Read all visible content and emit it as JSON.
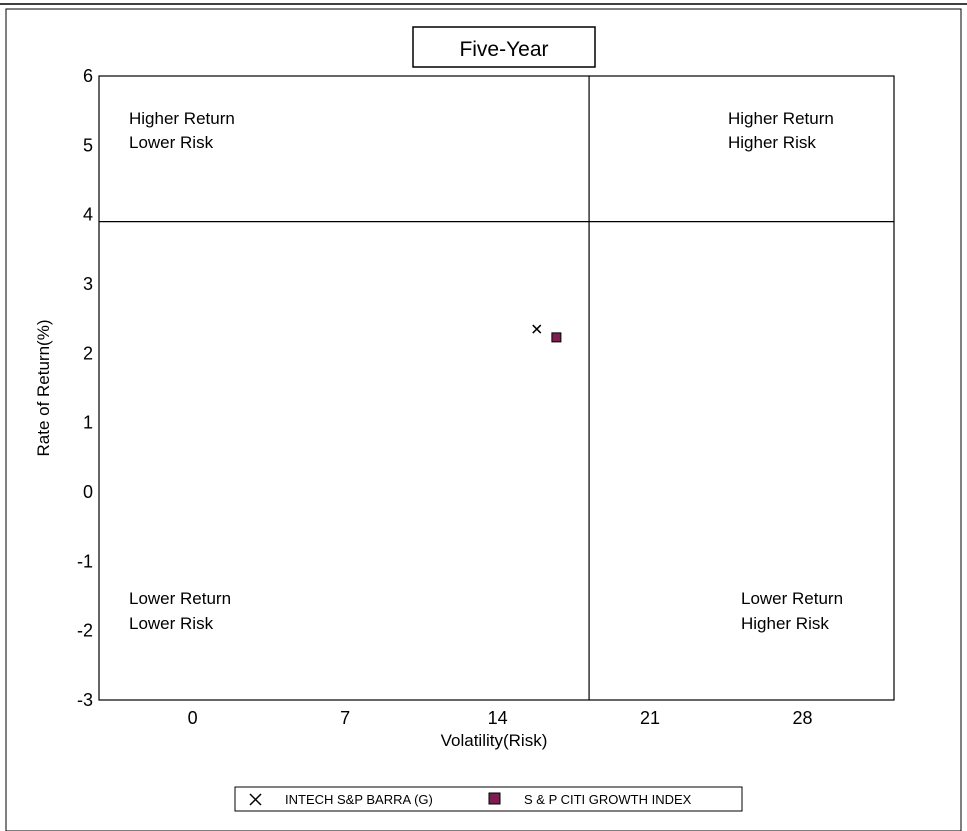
{
  "chart_data": {
    "type": "scatter",
    "title": "Five-Year",
    "xlabel": "Volatility(Risk)",
    "ylabel": "Rate of Return(%)",
    "xlim": [
      -4.3,
      32.2
    ],
    "ylim": [
      -3,
      6
    ],
    "x_ticks": [
      "0",
      "7",
      "14",
      "21",
      "28"
    ],
    "y_ticks": [
      "-3",
      "-2",
      "-1",
      "0",
      "1",
      "2",
      "3",
      "4",
      "5",
      "6"
    ],
    "quadrant_dividers": {
      "x": 18.2,
      "y": 3.9
    },
    "quadrant_labels": {
      "top_left": [
        "Higher Return",
        "Lower Risk"
      ],
      "top_right": [
        "Higher Return",
        "Higher Risk"
      ],
      "bottom_left": [
        "Lower Return",
        "Lower Risk"
      ],
      "bottom_right": [
        "Lower Return",
        "Higher Risk"
      ]
    },
    "series": [
      {
        "name": "INTECH S&P BARRA (G)",
        "marker": "x",
        "color": "#000000",
        "x": [
          15.8
        ],
        "y": [
          2.35
        ]
      },
      {
        "name": "S & P CITI GROWTH INDEX",
        "marker": "square",
        "color": "#7a1f4f",
        "x": [
          16.7
        ],
        "y": [
          2.23
        ]
      }
    ],
    "legend_position": "bottom-center",
    "grid": false
  }
}
